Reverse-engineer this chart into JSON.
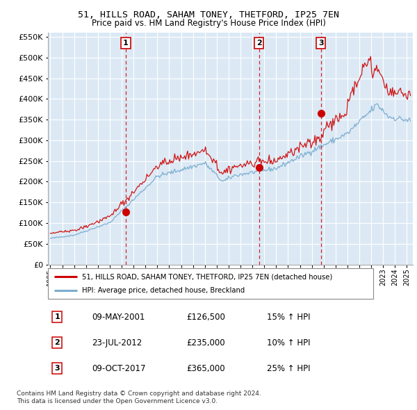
{
  "title": "51, HILLS ROAD, SAHAM TONEY, THETFORD, IP25 7EN",
  "subtitle": "Price paid vs. HM Land Registry's House Price Index (HPI)",
  "hpi_label": "HPI: Average price, detached house, Breckland",
  "price_label": "51, HILLS ROAD, SAHAM TONEY, THETFORD, IP25 7EN (detached house)",
  "footer1": "Contains HM Land Registry data © Crown copyright and database right 2024.",
  "footer2": "This data is licensed under the Open Government Licence v3.0.",
  "transactions": [
    {
      "num": 1,
      "date": "09-MAY-2001",
      "price": 126500,
      "hpi_pct": "15%",
      "year": 2001.35
    },
    {
      "num": 2,
      "date": "23-JUL-2012",
      "price": 235000,
      "hpi_pct": "10%",
      "year": 2012.55
    },
    {
      "num": 3,
      "date": "09-OCT-2017",
      "price": 365000,
      "hpi_pct": "25%",
      "year": 2017.77
    }
  ],
  "bg_color": "#dce9f5",
  "grid_color": "#ffffff",
  "red_line_color": "#cc0000",
  "blue_line_color": "#7aadcf",
  "marker_color": "#cc0000",
  "dashed_line_color": "#cc0000",
  "ylim": [
    0,
    560000
  ],
  "xlim_start": 1994.8,
  "xlim_end": 2025.5
}
